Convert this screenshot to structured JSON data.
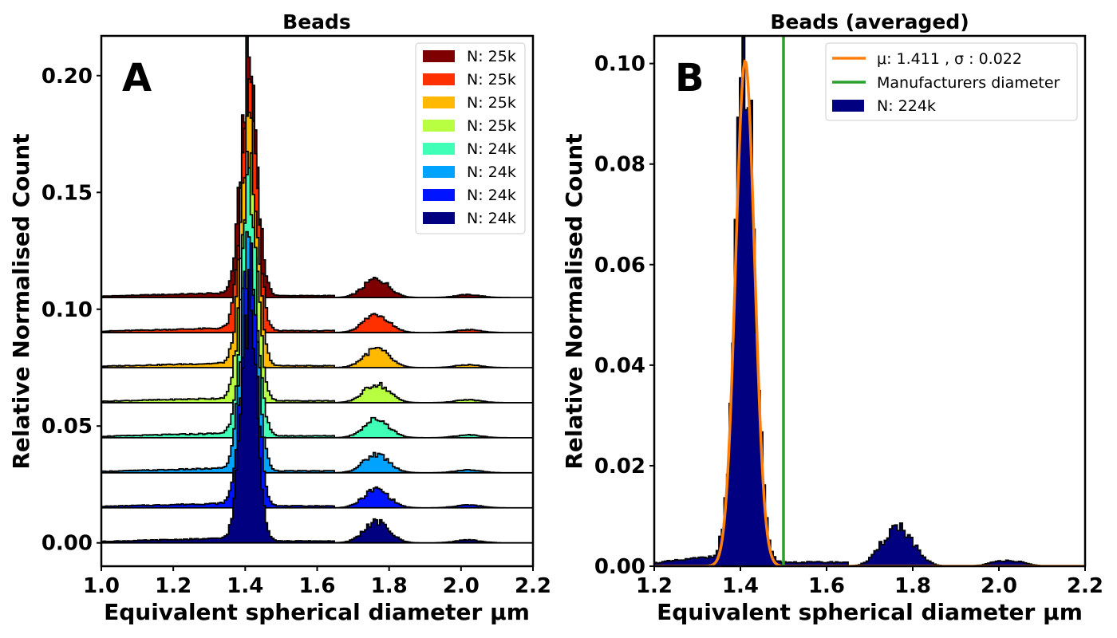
{
  "chart_data": [
    {
      "type": "histogram",
      "panel_letter": "A",
      "title": "Beads",
      "xlabel": "Equivalent spherical diameter µm",
      "ylabel": "Relative Normalised Count",
      "xlim": [
        1.0,
        2.2
      ],
      "ylim": [
        -0.01,
        0.217
      ],
      "xticks": [
        "1.0",
        "1.2",
        "1.4",
        "1.6",
        "1.8",
        "2.0",
        "2.2"
      ],
      "yticks": [
        "0.00",
        "0.05",
        "0.10",
        "0.15",
        "0.20"
      ],
      "legend_position": "top-right",
      "series": [
        {
          "name": "N: 25k",
          "color": "#7f0000",
          "offset": 0.105,
          "peak_main": 0.101,
          "peak_second": 0.008
        },
        {
          "name": "N: 25k",
          "color": "#ff3000",
          "offset": 0.09,
          "peak_main": 0.1,
          "peak_second": 0.008
        },
        {
          "name": "N: 25k",
          "color": "#ffb900",
          "offset": 0.075,
          "peak_main": 0.099,
          "peak_second": 0.008
        },
        {
          "name": "N: 25k",
          "color": "#b7ff40",
          "offset": 0.06,
          "peak_main": 0.098,
          "peak_second": 0.008
        },
        {
          "name": "N: 24k",
          "color": "#40ffb7",
          "offset": 0.045,
          "peak_main": 0.099,
          "peak_second": 0.008
        },
        {
          "name": "N: 24k",
          "color": "#00a4ff",
          "offset": 0.03,
          "peak_main": 0.098,
          "peak_second": 0.008
        },
        {
          "name": "N: 24k",
          "color": "#0014ff",
          "offset": 0.015,
          "peak_main": 0.1,
          "peak_second": 0.008
        },
        {
          "name": "N: 24k",
          "color": "#000080",
          "offset": 0.0,
          "peak_main": 0.101,
          "peak_second": 0.009
        }
      ]
    },
    {
      "type": "histogram",
      "panel_letter": "B",
      "title": "Beads (averaged)",
      "xlabel": "Equivalent spherical diameter µm",
      "ylabel": "Relative Normalised Count",
      "xlim": [
        1.2,
        2.2
      ],
      "ylim": [
        0.0,
        0.1055
      ],
      "xticks": [
        "1.2",
        "1.4",
        "1.6",
        "1.8",
        "2.0",
        "2.2"
      ],
      "yticks": [
        "0.00",
        "0.02",
        "0.04",
        "0.06",
        "0.08",
        "0.10"
      ],
      "legend_position": "top-right",
      "fit": {
        "label_mu": "μ: 1.411 , σ : 0.022",
        "mu": 1.411,
        "sigma": 0.022,
        "amplitude": 0.1005,
        "color": "#ff7f0e"
      },
      "vline": {
        "label": "Manufacturers diameter",
        "x": 1.5,
        "color": "#2ca02c"
      },
      "histogram": {
        "name": "N: 224k",
        "color": "#000080",
        "peak_main": 0.099,
        "peak_second": 0.008
      }
    }
  ]
}
